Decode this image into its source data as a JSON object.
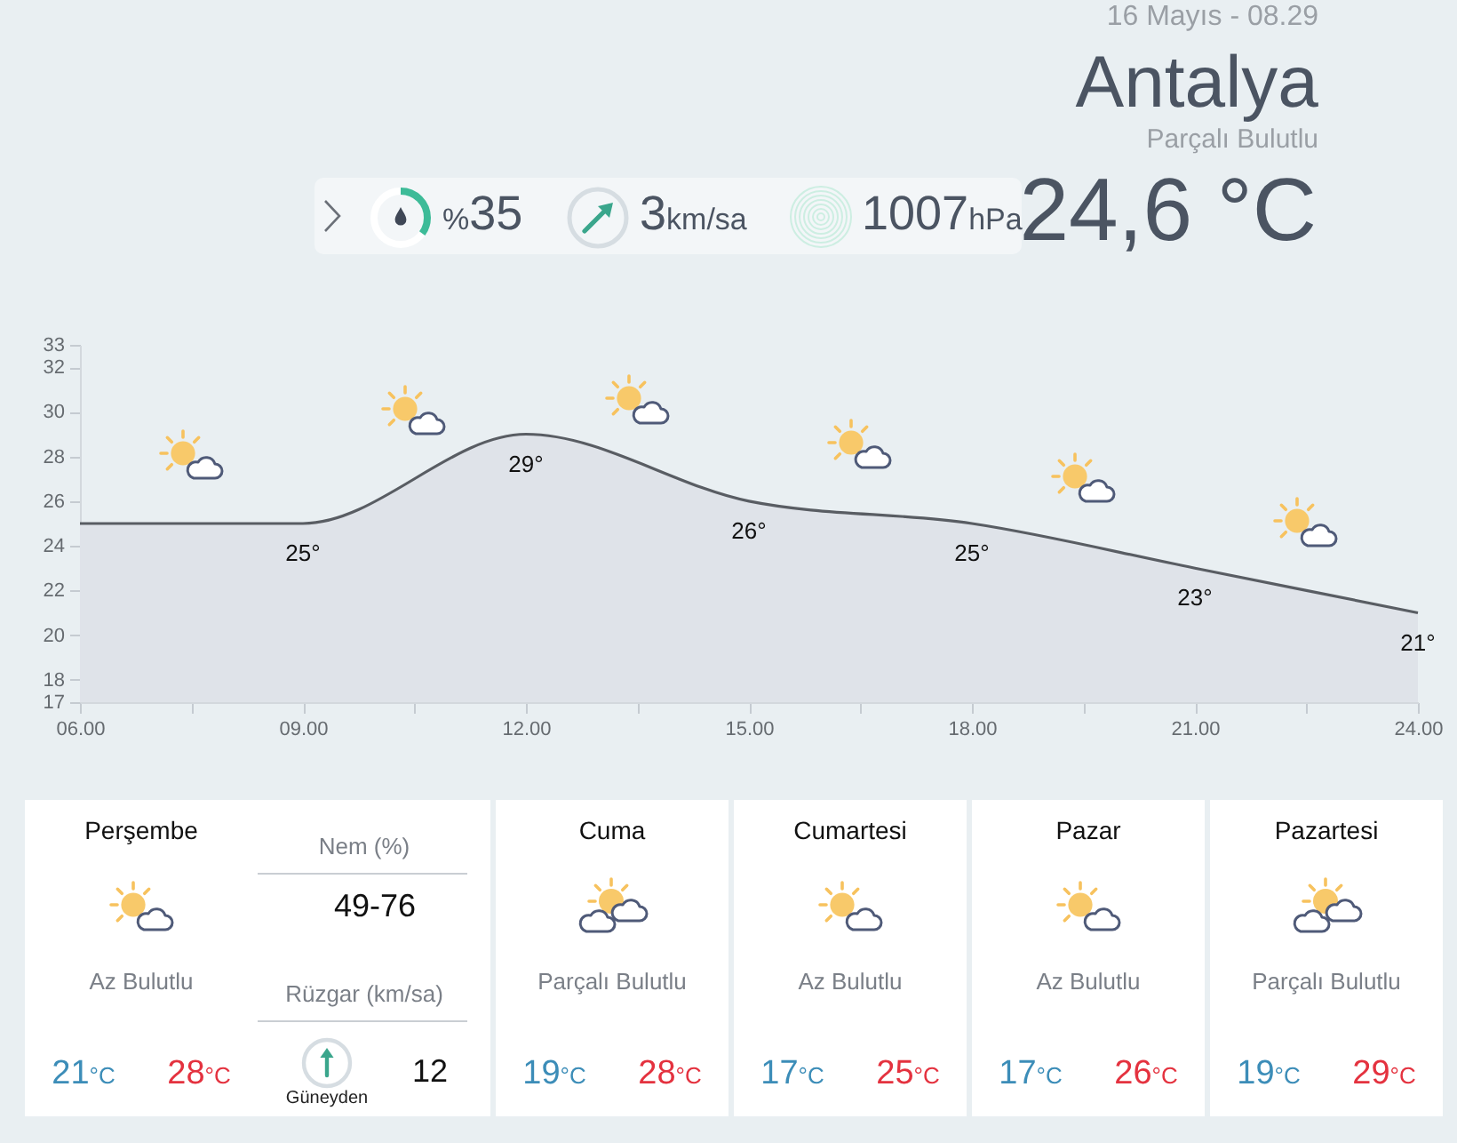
{
  "chart_data": [
    {
      "type": "other",
      "title": "Antalya",
      "subtitle": "Parçalı Bulutlu",
      "annotations": [
        "16 Mayıs - 08.29",
        "%35",
        "3km/sa",
        "1007hPa",
        "24,6 °C"
      ]
    },
    {
      "type": "area",
      "x": [
        6,
        9,
        12,
        15,
        18,
        21,
        24
      ],
      "values": [
        25,
        25,
        29,
        26,
        25,
        23,
        21
      ],
      "value_labels": [
        null,
        "25°",
        "29°",
        "26°",
        "25°",
        "23°",
        "21°"
      ],
      "color": "#dfe3e9",
      "xlim": [
        6,
        24
      ],
      "xticks": [
        {
          "value": 6,
          "label": "06.00"
        },
        {
          "value": 7.5,
          "label": null
        },
        {
          "value": 9,
          "label": "09.00"
        },
        {
          "value": 10.5,
          "label": null
        },
        {
          "value": 12,
          "label": "12.00"
        },
        {
          "value": 13.5,
          "label": null
        },
        {
          "value": 15,
          "label": "15.00"
        },
        {
          "value": 16.5,
          "label": null
        },
        {
          "value": 18,
          "label": "18.00"
        },
        {
          "value": 19.5,
          "label": null
        },
        {
          "value": 21,
          "label": "21.00"
        },
        {
          "value": 22.5,
          "label": null
        },
        {
          "value": 24,
          "label": "24.00"
        }
      ],
      "ylim": [
        17,
        33
      ],
      "yticks": [
        17,
        18,
        20,
        22,
        24,
        26,
        28,
        30,
        32,
        33
      ]
    },
    {
      "type": "other",
      "title": "Perşembe",
      "annotations": [
        "Az Bulutlu",
        "21°C",
        "28°C",
        "Nem (%)",
        "49-76",
        "Rüzgar (km/sa)",
        "12",
        "Güneyden"
      ]
    },
    {
      "type": "other",
      "title": "Cuma",
      "annotations": [
        "Parçalı Bulutlu",
        "19°C",
        "28°C"
      ]
    },
    {
      "type": "other",
      "title": "Cumartesi",
      "annotations": [
        "Az Bulutlu",
        "17°C",
        "25°C"
      ]
    },
    {
      "type": "other",
      "title": "Pazar",
      "annotations": [
        "Az Bulutlu",
        "17°C",
        "26°C"
      ]
    },
    {
      "type": "other",
      "title": "Pazartesi",
      "annotations": [
        "Parçalı Bulutlu",
        "19°C",
        "29°C"
      ]
    }
  ]
}
